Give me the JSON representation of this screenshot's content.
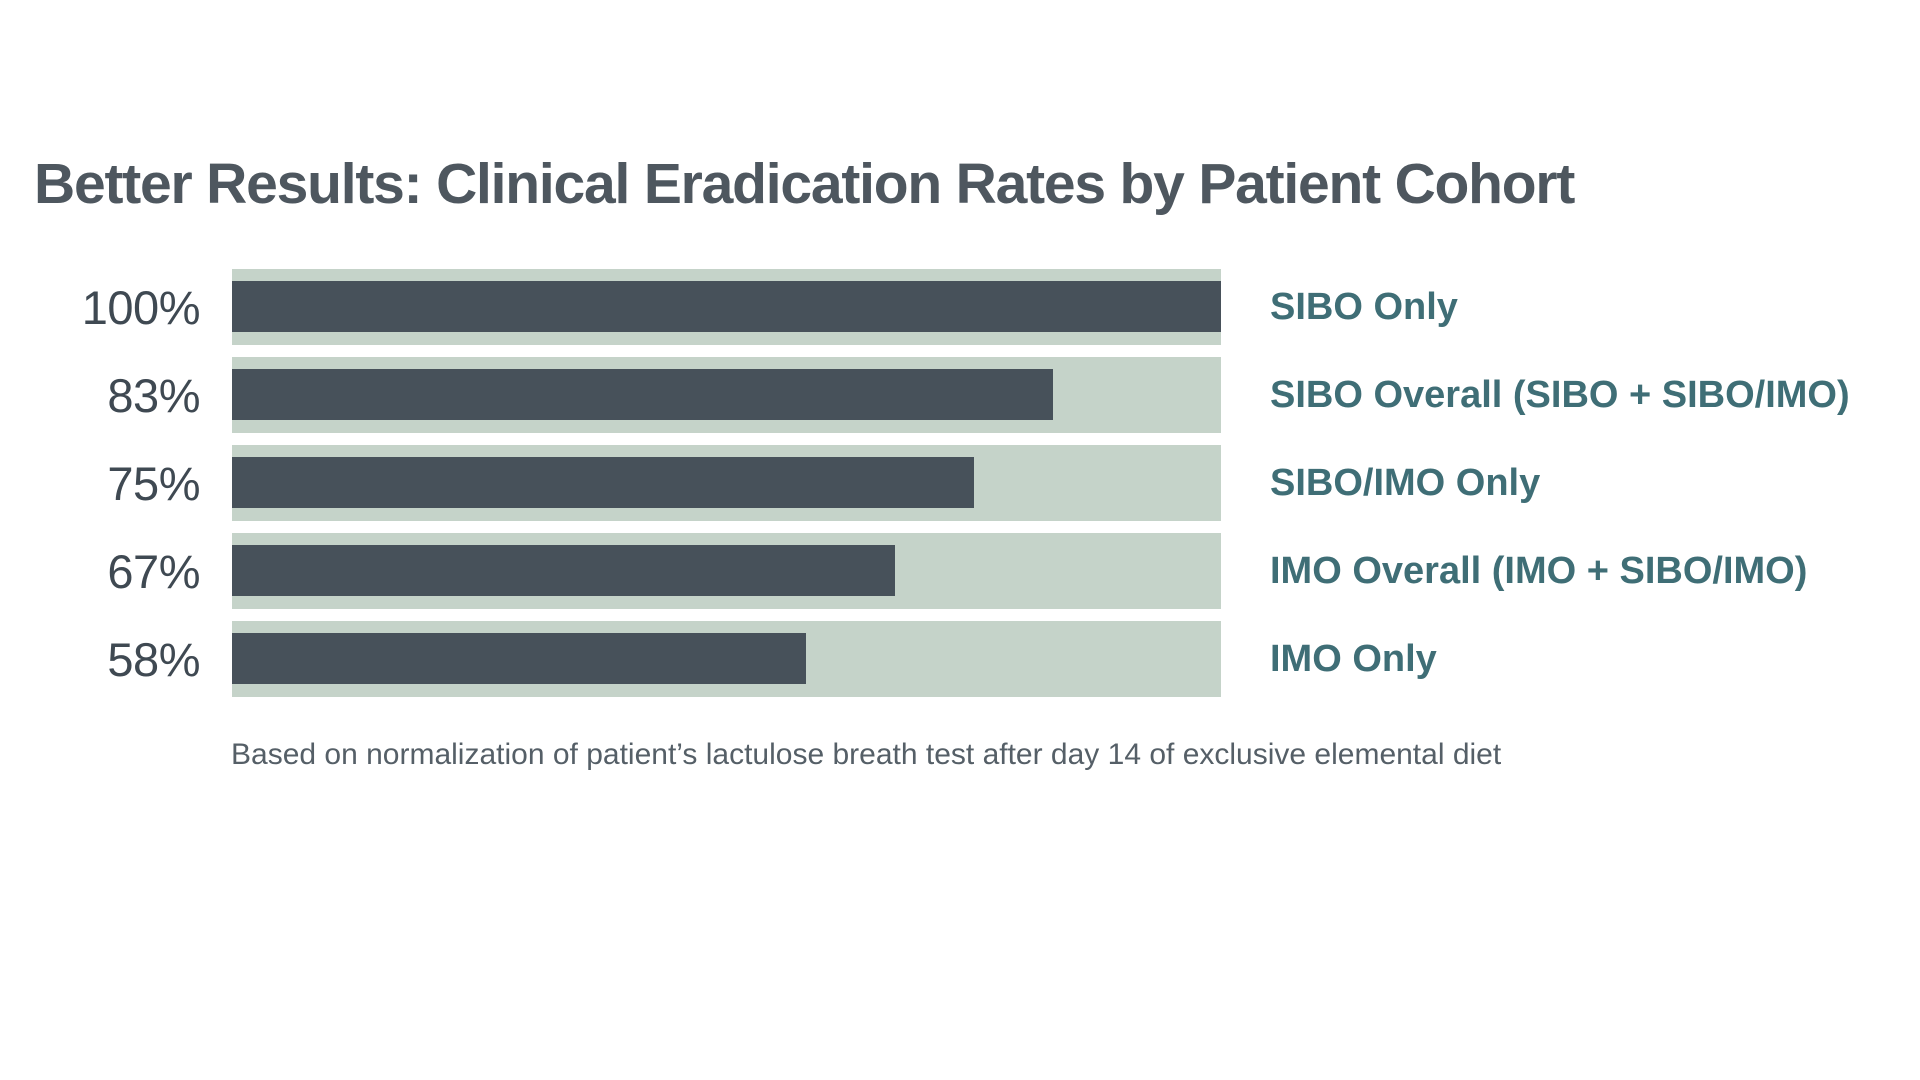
{
  "title": "Better Results: Clinical Eradication Rates by Patient Cohort",
  "caption": "Based on normalization of patient’s lactulose breath test after day 14 of exclusive elemental diet",
  "colors": {
    "background": "#ffffff",
    "bar_fill": "#47515a",
    "bar_track": "#c5d3c9",
    "title_text": "#4e575f",
    "value_text": "#3f4952",
    "category_text": "#3f6e76",
    "caption_text": "#555f67"
  },
  "chart_data": {
    "type": "bar",
    "orientation": "horizontal",
    "title": "Better Results: Clinical Eradication Rates by Patient Cohort",
    "categories": [
      "SIBO Only",
      "SIBO Overall (SIBO + SIBO/IMO)",
      "SIBO/IMO Only",
      "IMO Overall (IMO + SIBO/IMO)",
      "IMO Only"
    ],
    "values": [
      100,
      83,
      75,
      67,
      58
    ],
    "unit": "%",
    "xlim": [
      0,
      100
    ],
    "grid": false,
    "legend": "none",
    "value_label_position": "left",
    "category_label_position": "right",
    "note": "Based on normalization of patient’s lactulose breath test after day 14 of exclusive elemental diet",
    "rows": [
      {
        "value_label": "100%",
        "value": 100,
        "label": "SIBO Only"
      },
      {
        "value_label": "83%",
        "value": 83,
        "label": "SIBO Overall (SIBO + SIBO/IMO)"
      },
      {
        "value_label": "75%",
        "value": 75,
        "label": "SIBO/IMO Only"
      },
      {
        "value_label": "67%",
        "value": 67,
        "label": "IMO Overall (IMO + SIBO/IMO)"
      },
      {
        "value_label": "58%",
        "value": 58,
        "label": "IMO Only"
      }
    ]
  }
}
